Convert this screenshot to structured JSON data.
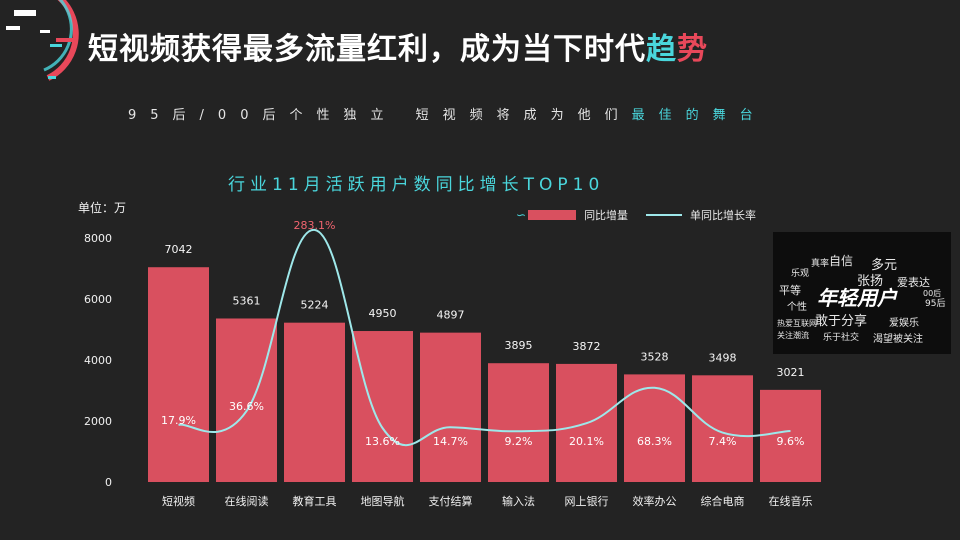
{
  "title": {
    "part1": "短视频获得最多流量红利，成为当下时代",
    "accent1": "趋",
    "accent2": "势"
  },
  "subtitle": {
    "part1": "95后/00后个性独立  短视频将成为他们",
    "highlight": "最佳的舞台"
  },
  "unit_label": "单位：万",
  "legend": {
    "bar": "同比增量",
    "line": "单同比增长率"
  },
  "wordcloud": {
    "main": "年轻用户",
    "words": [
      "真率",
      "自信",
      "多元",
      "乐观",
      "张扬",
      "爱表达",
      "平等",
      "00后",
      "个性",
      "95后",
      "热爱互联网",
      "敢于分享",
      "关注潮流",
      "爱娱乐",
      "乐于社交",
      "渴望被关注"
    ]
  },
  "colors": {
    "bar": "#d9505f",
    "line": "#9ee8ea",
    "accent_cyan": "#4ad6dc",
    "accent_red": "#e8485a",
    "background": "#232323"
  },
  "chart_data": {
    "type": "bar",
    "title": "行业11月活跃用户数同比增长TOP10",
    "ylabel": "单位：万",
    "ylim": [
      0,
      8000
    ],
    "yticks": [
      0,
      2000,
      4000,
      6000,
      8000
    ],
    "categories": [
      "短视频",
      "在线阅读",
      "教育工具",
      "地图导航",
      "支付结算",
      "输入法",
      "网上银行",
      "效率办公",
      "综合电商",
      "在线音乐"
    ],
    "series": [
      {
        "name": "同比增量",
        "type": "bar",
        "values": [
          7042,
          5361,
          5224,
          4950,
          4897,
          3895,
          3872,
          3528,
          3498,
          3021
        ]
      },
      {
        "name": "单同比增长率",
        "type": "line",
        "values": [
          17.9,
          36.6,
          283.1,
          13.6,
          14.7,
          9.2,
          20.1,
          68.3,
          7.4,
          9.6
        ],
        "labels": [
          "17.9%",
          "36.6%",
          "283.1%",
          "13.6%",
          "14.7%",
          "9.2%",
          "20.1%",
          "68.3%",
          "7.4%",
          "9.6%"
        ]
      }
    ],
    "legend_position": "top-right",
    "grid": false
  }
}
